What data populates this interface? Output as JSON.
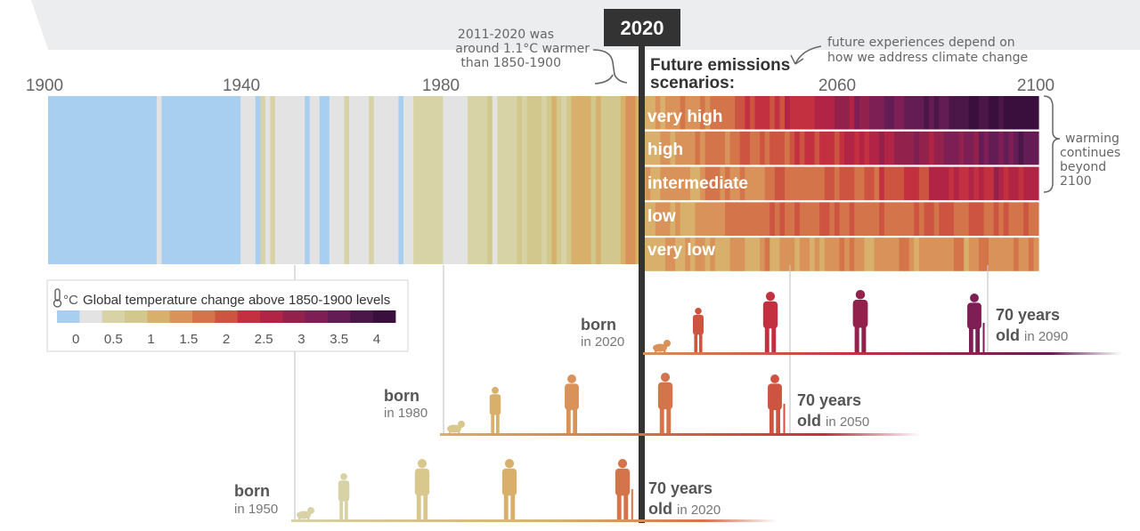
{
  "header": {
    "year_badge": "2020",
    "note_lines": [
      "2011-2020 was",
      "around 1.1°C warmer",
      "than 1850-1900"
    ],
    "scenarios_title_lines": [
      "Future emissions",
      "scenarios:"
    ],
    "future_note_lines": [
      "future experiences depend on",
      "how we address climate change"
    ]
  },
  "axis": {
    "years": [
      "1900",
      "1940",
      "1980",
      "2060",
      "2100"
    ]
  },
  "scenarios": [
    {
      "label": "very high",
      "level": 4.4
    },
    {
      "label": "high",
      "level": 3.6
    },
    {
      "label": "intermediate",
      "level": 2.7
    },
    {
      "label": "low",
      "level": 1.8
    },
    {
      "label": "very low",
      "level": 1.4
    }
  ],
  "right_note_lines": [
    "warming",
    "continues",
    "beyond",
    "2100"
  ],
  "legend": {
    "title": "Global temperature change above 1850-1900 levels",
    "unit": "°C",
    "ticks": [
      "0",
      "0.5",
      "1",
      "1.5",
      "2",
      "2.5",
      "3",
      "3.5",
      "4"
    ],
    "colors": [
      "#a9cff0",
      "#e3e3e3",
      "#d8d3a6",
      "#d2c88e",
      "#d8b06c",
      "#d9935a",
      "#d4744b",
      "#cc5440",
      "#c33040",
      "#b22445",
      "#92214b",
      "#7d1f55",
      "#641c55",
      "#4b1648",
      "#3a0f3d"
    ]
  },
  "generations": [
    {
      "born_label": "born",
      "born_year": "in 2020",
      "age_label": "70 years",
      "old_label": "old",
      "old_year": "in 2090"
    },
    {
      "born_label": "born",
      "born_year": "in 1980",
      "age_label": "70 years",
      "old_label": "old",
      "old_year": "in 2050"
    },
    {
      "born_label": "born",
      "born_year": "in 1950",
      "age_label": "70 years",
      "old_label": "old",
      "old_year": "in 2020"
    }
  ]
}
